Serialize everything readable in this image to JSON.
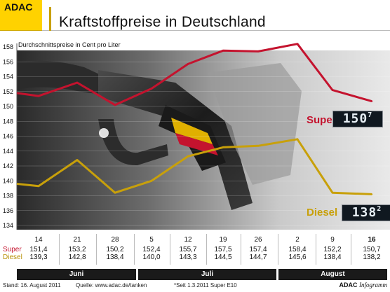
{
  "header": {
    "logo_text": "ADAC",
    "title": "Kraftstoffpreise in Deutschland"
  },
  "chart_data": {
    "type": "line",
    "title": "Kraftstoffpreise in Deutschland",
    "ylabel": "Durchschnittspreise in Cent pro Liter",
    "ylim": [
      134,
      158
    ],
    "yticks": [
      134,
      136,
      138,
      140,
      142,
      144,
      146,
      148,
      150,
      152,
      154,
      156,
      158
    ],
    "categories": [
      "14",
      "21",
      "28",
      "5",
      "12",
      "19",
      "26",
      "2",
      "9",
      "16"
    ],
    "series": [
      {
        "name": "Super",
        "color": "#c4132e",
        "values": [
          151.4,
          153.2,
          150.2,
          152.4,
          155.7,
          157.5,
          157.4,
          158.4,
          152.2,
          150.7
        ]
      },
      {
        "name": "Diesel",
        "color": "#c8a00a",
        "values": [
          139.3,
          142.8,
          138.4,
          140.0,
          143.3,
          144.5,
          144.7,
          145.6,
          138.4,
          138.2
        ]
      }
    ],
    "grid": true
  },
  "labels": {
    "super_name": "Super",
    "super_mark": "*",
    "diesel_name": "Diesel",
    "super_display_main": "150",
    "super_display_sup": "7",
    "diesel_display_main": "138",
    "diesel_display_sup": "2"
  },
  "table": {
    "row_super": "Super",
    "row_diesel": "Diesel",
    "days": [
      "14",
      "21",
      "28",
      "5",
      "12",
      "19",
      "26",
      "2",
      "9",
      "16"
    ],
    "super": [
      "151,4",
      "153,2",
      "150,2",
      "152,4",
      "155,7",
      "157,5",
      "157,4",
      "158,4",
      "152,2",
      "150,7"
    ],
    "diesel": [
      "139,3",
      "142,8",
      "138,4",
      "140,0",
      "143,3",
      "144,5",
      "144,7",
      "145,6",
      "138,4",
      "138,2"
    ]
  },
  "months": [
    "Juni",
    "Juli",
    "August"
  ],
  "footer": {
    "stand": "Stand: 16. August 2011",
    "quelle": "Quelle: www.adac.de/tanken",
    "note": "*Seit 1.3.2011 Super E10",
    "brand_a": "ADAC",
    "brand_b": "Infogramm"
  }
}
